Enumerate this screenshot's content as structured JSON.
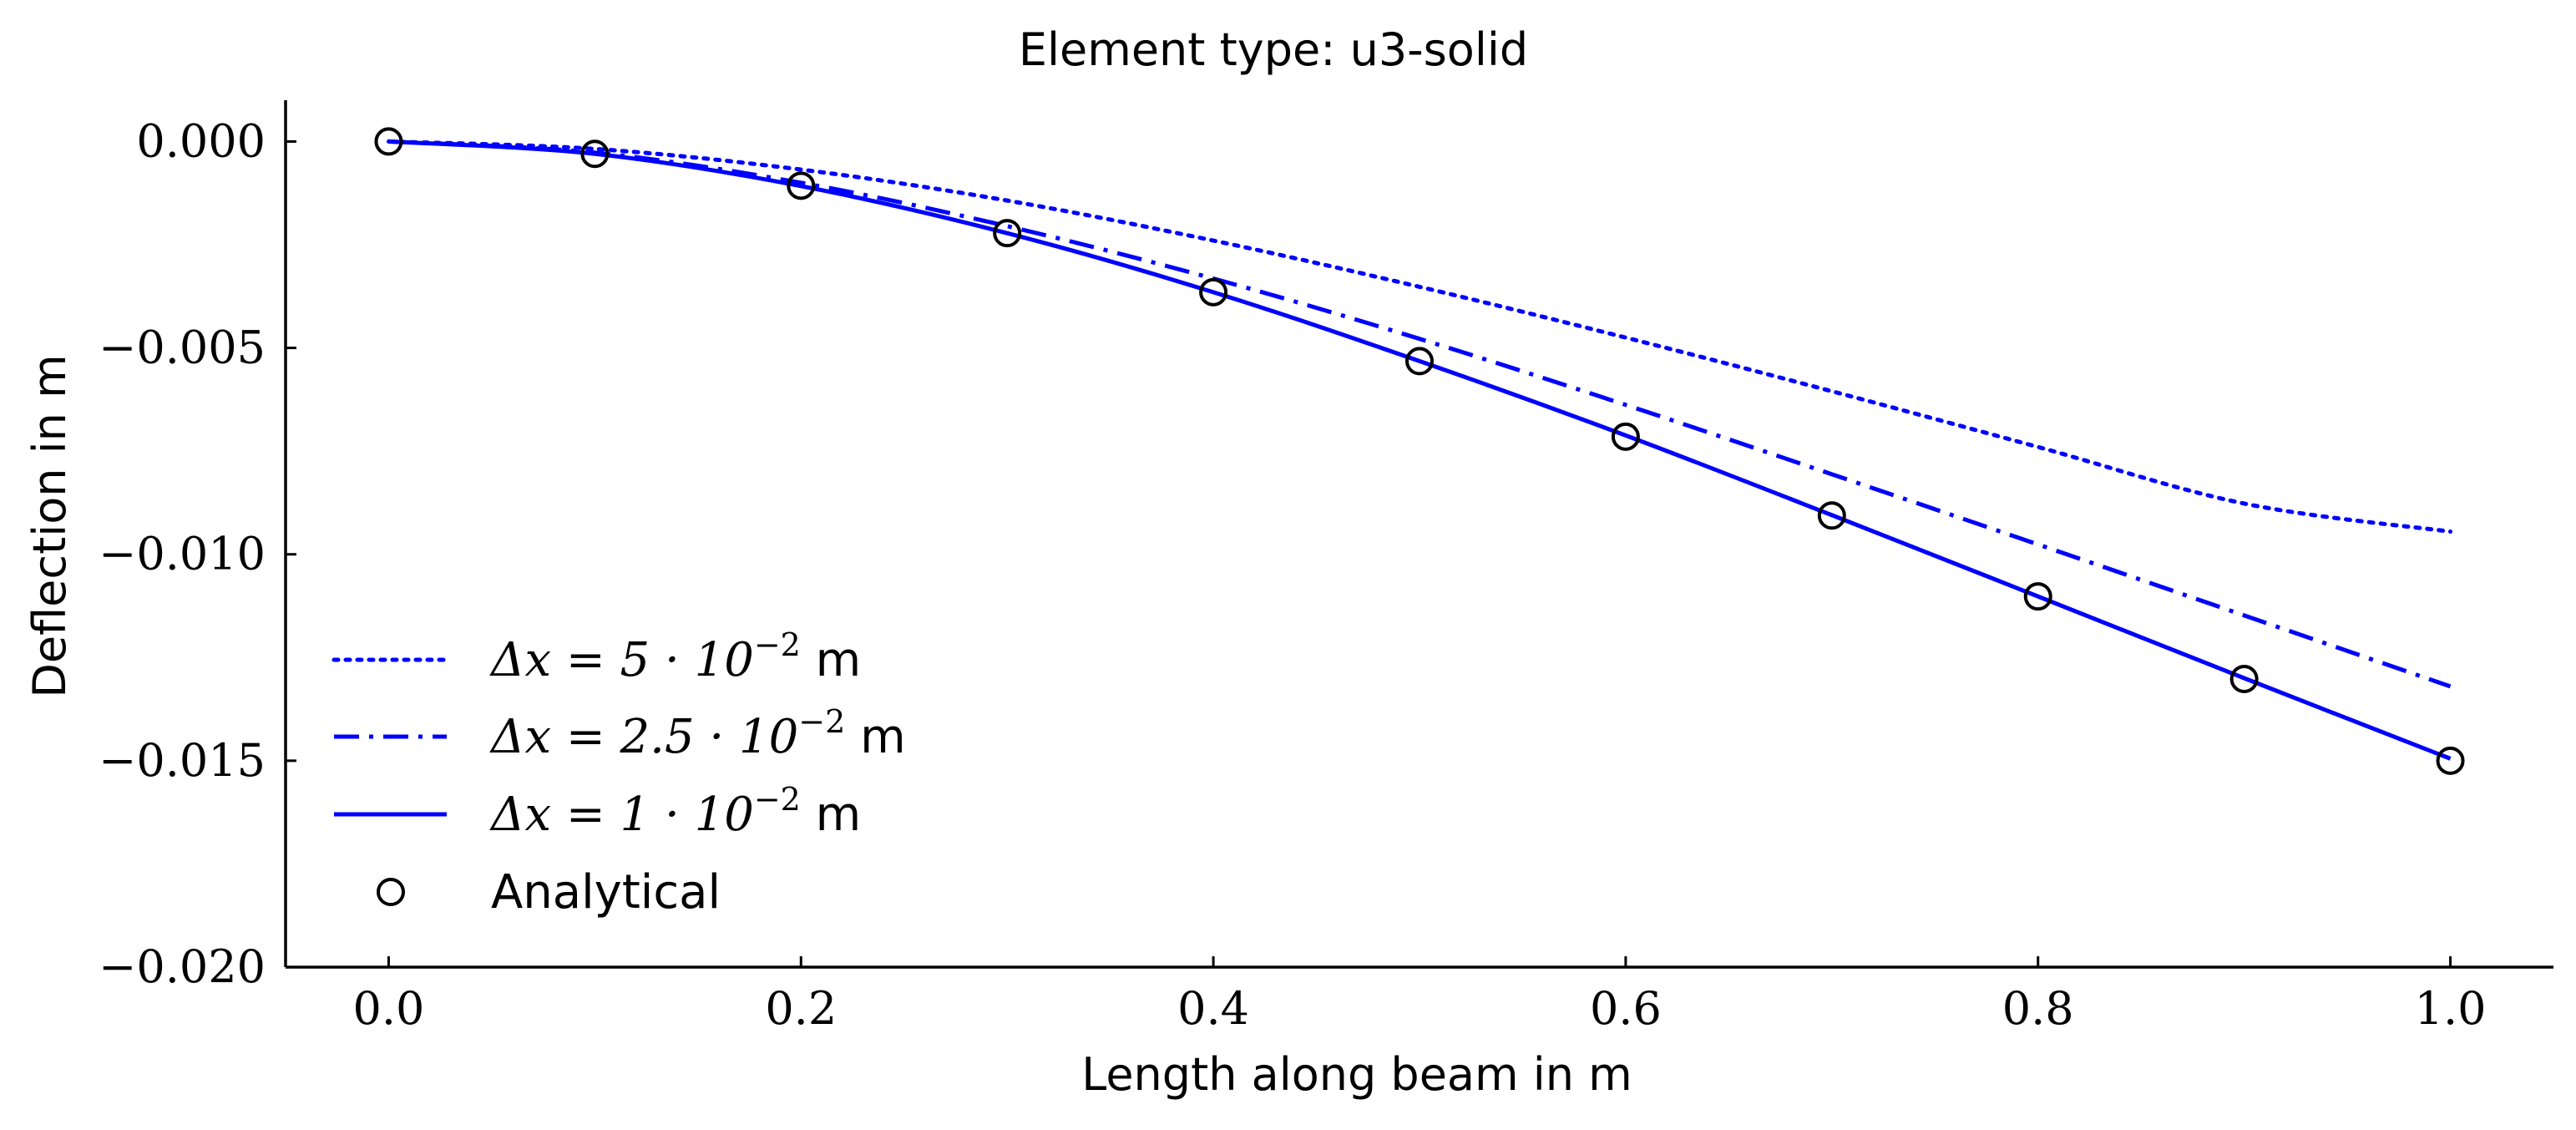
{
  "chart_data": {
    "type": "line",
    "title": "Element type: u3-solid",
    "xlabel": "Length along beam in m",
    "ylabel": "Deflection in m",
    "xlim": [
      -0.05,
      1.05
    ],
    "ylim": [
      -0.02,
      0.001
    ],
    "xticks": [
      0.0,
      0.2,
      0.4,
      0.6,
      0.8,
      1.0
    ],
    "xtick_labels": [
      "0.0",
      "0.2",
      "0.4",
      "0.6",
      "0.8",
      "1.0"
    ],
    "yticks": [
      0.0,
      -0.005,
      -0.01,
      -0.015,
      -0.02
    ],
    "ytick_labels": [
      "0.000",
      "−0.005",
      "−0.010",
      "−0.015",
      "−0.020"
    ],
    "grid": false,
    "legend_position": "lower-left",
    "series": [
      {
        "name": "Δx = 5 · 10⁻² m",
        "legend_math": "\\Delta x = 5 \\cdot 10^{-2}",
        "legend_base": "Δx = 5 · 10",
        "legend_exp": "−2",
        "legend_unit": "m",
        "style": "dotted",
        "color": "#0000ff",
        "x": [
          0.0,
          0.1,
          0.2,
          0.3,
          0.4,
          0.5,
          0.6,
          0.7,
          0.8,
          0.9,
          1.0
        ],
        "y": [
          0.0,
          -0.00018,
          -0.00068,
          -0.00143,
          -0.0024,
          -0.00352,
          -0.00475,
          -0.00605,
          -0.0074,
          -0.00877,
          -0.00945
        ]
      },
      {
        "name": "Δx = 2.5 · 10⁻² m",
        "legend_math": "\\Delta x = 2.5 \\cdot 10^{-2}",
        "legend_base": "Δx = 2.5 · 10",
        "legend_exp": "−2",
        "legend_unit": "m",
        "style": "dashdot",
        "color": "#0000ff",
        "x": [
          0.0,
          0.1,
          0.2,
          0.3,
          0.4,
          0.5,
          0.6,
          0.7,
          0.8,
          0.9,
          1.0
        ],
        "y": [
          0.0,
          -0.00027,
          -0.001,
          -0.00205,
          -0.00332,
          -0.00478,
          -0.00638,
          -0.00806,
          -0.00976,
          -0.01148,
          -0.0132
        ]
      },
      {
        "name": "Δx = 1 · 10⁻² m",
        "legend_math": "\\Delta x = 1 \\cdot 10^{-2}",
        "legend_base": "Δx = 1 · 10",
        "legend_exp": "−2",
        "legend_unit": "m",
        "style": "solid",
        "color": "#0000ff",
        "x": [
          0.0,
          0.1,
          0.2,
          0.3,
          0.4,
          0.5,
          0.6,
          0.7,
          0.8,
          0.9,
          1.0
        ],
        "y": [
          0.0,
          -0.0003,
          -0.00108,
          -0.00222,
          -0.00365,
          -0.00532,
          -0.00712,
          -0.00905,
          -0.01102,
          -0.013,
          -0.01495
        ]
      },
      {
        "name": "Analytical",
        "legend_unit": "",
        "style": "markers",
        "marker": "circle-open",
        "color": "#000000",
        "x": [
          0.0,
          0.1,
          0.2,
          0.3,
          0.4,
          0.5,
          0.6,
          0.7,
          0.8,
          0.9,
          1.0
        ],
        "y": [
          0.0,
          -0.0003,
          -0.00107,
          -0.00222,
          -0.00365,
          -0.00532,
          -0.00715,
          -0.00906,
          -0.01102,
          -0.01302,
          -0.015
        ]
      }
    ]
  }
}
